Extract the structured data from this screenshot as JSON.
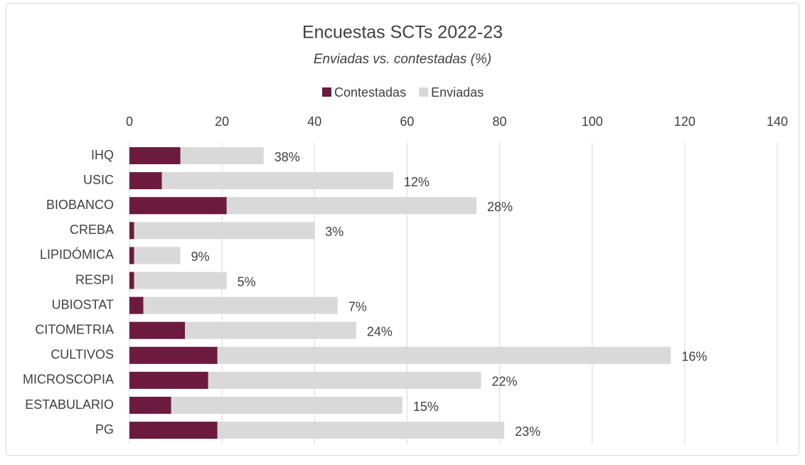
{
  "chart_data": {
    "type": "bar",
    "orientation": "horizontal",
    "overlap": true,
    "title": "Encuestas SCTs 2022-23",
    "subtitle": "Enviadas vs. contestadas (%)",
    "categories": [
      "IHQ",
      "USIC",
      "BIOBANCO",
      "CREBA",
      "LIPIDÓMICA",
      "RESPI",
      "UBIOSTAT",
      "CITOMETRIA",
      "CULTIVOS",
      "MICROSCOPIA",
      "ESTABULARIO",
      "PG"
    ],
    "series": [
      {
        "name": "Contestadas",
        "color": "#6d1a3f",
        "values": [
          11,
          7,
          21,
          1,
          1,
          1,
          3,
          12,
          19,
          17,
          9,
          19
        ]
      },
      {
        "name": "Enviadas",
        "color": "#d9d9d9",
        "values": [
          29,
          57,
          75,
          40,
          11,
          21,
          45,
          49,
          117,
          76,
          59,
          81
        ]
      }
    ],
    "annotations": [
      "38%",
      "12%",
      "28%",
      "3%",
      "9%",
      "5%",
      "7%",
      "24%",
      "16%",
      "22%",
      "15%",
      "23%"
    ],
    "xlim": [
      0,
      140
    ],
    "xticks": [
      0,
      20,
      40,
      60,
      80,
      100,
      120,
      140
    ],
    "grid": true,
    "legend": "top"
  }
}
